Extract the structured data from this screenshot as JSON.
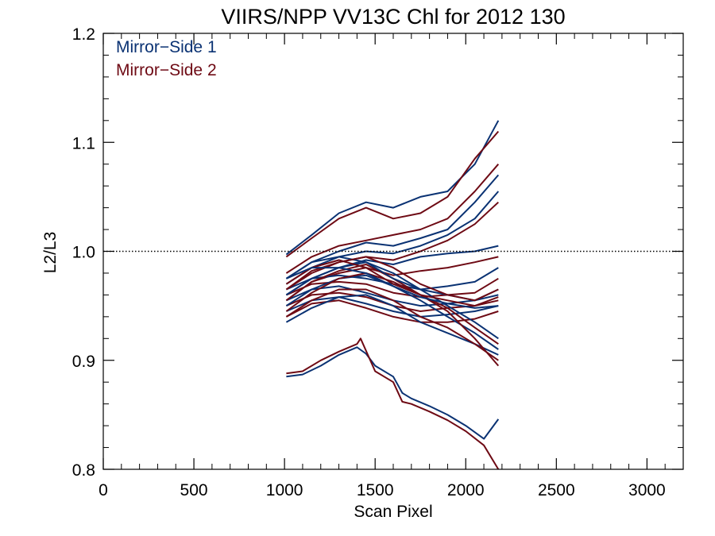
{
  "chart_data": {
    "type": "line",
    "title": "VIIRS/NPP VV13C Chl for 2012 130",
    "xlabel": "Scan Pixel",
    "ylabel": "L2/L3",
    "xlim": [
      0,
      3200
    ],
    "ylim": [
      0.8,
      1.2
    ],
    "x_ticks": [
      0,
      500,
      1000,
      1500,
      2000,
      2500,
      3000
    ],
    "x_tick_labels": [
      "0",
      "500",
      "1000",
      "1500",
      "2000",
      "2500",
      "3000"
    ],
    "y_ticks": [
      0.8,
      0.9,
      1.0,
      1.1,
      1.2
    ],
    "y_tick_labels": [
      "0.8",
      "0.9",
      "1.0",
      "1.1",
      "1.2"
    ],
    "reference_line": {
      "y": 1.0,
      "style": "dotted"
    },
    "grid": false,
    "legend_position": "top-left",
    "legend": [
      {
        "label": "Mirror−Side 1",
        "color": "#0a3273"
      },
      {
        "label": "Mirror−Side 2",
        "color": "#6e0a14"
      }
    ],
    "series_colors": [
      "#0a3273",
      "#6e0a14"
    ],
    "series": [
      {
        "group": 0,
        "x": [
          1010,
          1150,
          1300,
          1450,
          1600,
          1750,
          1900,
          2050,
          2180
        ],
        "y": [
          0.997,
          1.015,
          1.035,
          1.045,
          1.04,
          1.05,
          1.055,
          1.08,
          1.12
        ]
      },
      {
        "group": 1,
        "x": [
          1010,
          1150,
          1300,
          1450,
          1600,
          1750,
          1900,
          2050,
          2180
        ],
        "y": [
          0.995,
          1.012,
          1.03,
          1.04,
          1.03,
          1.035,
          1.05,
          1.085,
          1.11
        ]
      },
      {
        "group": 1,
        "x": [
          1010,
          1150,
          1300,
          1450,
          1600,
          1750,
          1900,
          2050,
          2180
        ],
        "y": [
          0.98,
          0.995,
          1.005,
          1.01,
          1.015,
          1.02,
          1.03,
          1.055,
          1.08
        ]
      },
      {
        "group": 0,
        "x": [
          1010,
          1150,
          1300,
          1450,
          1600,
          1750,
          1900,
          2050,
          2180
        ],
        "y": [
          0.975,
          0.99,
          1.0,
          1.008,
          1.005,
          1.012,
          1.02,
          1.045,
          1.07
        ]
      },
      {
        "group": 0,
        "x": [
          1010,
          1150,
          1300,
          1450,
          1600,
          1750,
          1900,
          2050,
          2180
        ],
        "y": [
          0.97,
          0.985,
          0.995,
          1.0,
          0.998,
          1.005,
          1.015,
          1.03,
          1.055
        ]
      },
      {
        "group": 1,
        "x": [
          1010,
          1150,
          1300,
          1450,
          1600,
          1750,
          1900,
          2050,
          2180
        ],
        "y": [
          0.965,
          0.982,
          0.99,
          0.995,
          0.992,
          1.0,
          1.01,
          1.025,
          1.045
        ]
      },
      {
        "group": 0,
        "x": [
          1010,
          1150,
          1300,
          1450,
          1600,
          1750,
          1900,
          2050,
          2180
        ],
        "y": [
          0.96,
          0.975,
          0.985,
          0.992,
          0.988,
          0.995,
          0.998,
          1.0,
          1.005
        ]
      },
      {
        "group": 1,
        "x": [
          1010,
          1150,
          1300,
          1450,
          1600,
          1750,
          1900,
          2050,
          2180
        ],
        "y": [
          0.955,
          0.972,
          0.98,
          0.985,
          0.978,
          0.982,
          0.985,
          0.99,
          0.995
        ]
      },
      {
        "group": 0,
        "x": [
          1010,
          1150,
          1300,
          1450,
          1600,
          1750,
          1900,
          2050,
          2180
        ],
        "y": [
          0.965,
          0.975,
          0.978,
          0.975,
          0.97,
          0.965,
          0.968,
          0.972,
          0.985
        ]
      },
      {
        "group": 1,
        "x": [
          1010,
          1150,
          1300,
          1450,
          1600,
          1750,
          1900,
          2050,
          2180
        ],
        "y": [
          0.96,
          0.97,
          0.972,
          0.97,
          0.962,
          0.958,
          0.96,
          0.962,
          0.975
        ]
      },
      {
        "group": 0,
        "x": [
          1010,
          1150,
          1300,
          1450,
          1600,
          1750,
          1900,
          2050,
          2180
        ],
        "y": [
          0.955,
          0.965,
          0.968,
          0.962,
          0.955,
          0.95,
          0.952,
          0.955,
          0.965
        ]
      },
      {
        "group": 1,
        "x": [
          1010,
          1150,
          1300,
          1450,
          1600,
          1750,
          1900,
          2050,
          2180
        ],
        "y": [
          0.95,
          0.96,
          0.962,
          0.958,
          0.95,
          0.945,
          0.948,
          0.95,
          0.958
        ]
      },
      {
        "group": 0,
        "x": [
          1010,
          1150,
          1300,
          1450,
          1600,
          1750,
          1900,
          2050,
          2180
        ],
        "y": [
          0.945,
          0.955,
          0.958,
          0.952,
          0.945,
          0.94,
          0.942,
          0.945,
          0.95
        ]
      },
      {
        "group": 1,
        "x": [
          1010,
          1150,
          1300,
          1450,
          1600,
          1750,
          1900,
          2050,
          2180
        ],
        "y": [
          0.94,
          0.952,
          0.955,
          0.948,
          0.94,
          0.935,
          0.935,
          0.938,
          0.945
        ]
      },
      {
        "group": 0,
        "x": [
          1010,
          1150,
          1300,
          1450,
          1600,
          1750,
          1900,
          2050,
          2180
        ],
        "y": [
          0.935,
          0.948,
          0.958,
          0.96,
          0.95,
          0.935,
          0.925,
          0.915,
          0.905
        ]
      },
      {
        "group": 1,
        "x": [
          1010,
          1150,
          1300,
          1450,
          1600,
          1750,
          1900,
          2050,
          2180
        ],
        "y": [
          0.94,
          0.955,
          0.965,
          0.965,
          0.955,
          0.94,
          0.93,
          0.915,
          0.9
        ]
      },
      {
        "group": 0,
        "x": [
          1010,
          1150,
          1300,
          1450,
          1600,
          1750,
          1900,
          2050,
          2180
        ],
        "y": [
          0.95,
          0.965,
          0.975,
          0.978,
          0.968,
          0.955,
          0.94,
          0.925,
          0.91
        ]
      },
      {
        "group": 1,
        "x": [
          1010,
          1150,
          1300,
          1450,
          1600,
          1750,
          1900,
          2050,
          2180
        ],
        "y": [
          0.945,
          0.962,
          0.975,
          0.98,
          0.972,
          0.96,
          0.945,
          0.92,
          0.895
        ]
      },
      {
        "group": 0,
        "x": [
          1010,
          1150,
          1300,
          1450,
          1600,
          1750,
          1900,
          2050,
          2180
        ],
        "y": [
          0.96,
          0.975,
          0.985,
          0.99,
          0.98,
          0.965,
          0.95,
          0.935,
          0.92
        ]
      },
      {
        "group": 1,
        "x": [
          1010,
          1150,
          1300,
          1450,
          1600,
          1750,
          1900,
          2050,
          2180
        ],
        "y": [
          0.955,
          0.972,
          0.982,
          0.988,
          0.975,
          0.96,
          0.948,
          0.93,
          0.915
        ]
      },
      {
        "group": 0,
        "x": [
          1010,
          1150,
          1300,
          1450,
          1600,
          1750,
          1900,
          2050,
          2180
        ],
        "y": [
          0.975,
          0.99,
          0.995,
          0.99,
          0.975,
          0.965,
          0.96,
          0.955,
          0.96
        ]
      },
      {
        "group": 1,
        "x": [
          1010,
          1150,
          1300,
          1450,
          1600,
          1750,
          1900,
          2050,
          2180
        ],
        "y": [
          0.97,
          0.985,
          0.992,
          0.985,
          0.97,
          0.96,
          0.955,
          0.95,
          0.955
        ]
      },
      {
        "group": 1,
        "x": [
          1010,
          1150,
          1300,
          1450,
          1600,
          1750,
          1900,
          2050,
          2180
        ],
        "y": [
          0.965,
          0.98,
          0.99,
          0.995,
          0.985,
          0.97,
          0.96,
          0.955,
          0.965
        ]
      },
      {
        "group": 0,
        "x": [
          1010,
          1150,
          1300,
          1450,
          1600,
          1750,
          1900,
          2050,
          2180
        ],
        "y": [
          0.975,
          0.985,
          0.985,
          0.98,
          0.968,
          0.958,
          0.952,
          0.948,
          0.95
        ]
      },
      {
        "group": 0,
        "x": [
          1010,
          1100,
          1200,
          1300,
          1400,
          1450,
          1500,
          1600,
          1650,
          1700,
          1800,
          1900,
          2000,
          2100,
          2180
        ],
        "y": [
          0.885,
          0.887,
          0.895,
          0.905,
          0.912,
          0.906,
          0.895,
          0.885,
          0.87,
          0.865,
          0.858,
          0.85,
          0.84,
          0.828,
          0.846
        ]
      },
      {
        "group": 1,
        "x": [
          1010,
          1100,
          1200,
          1300,
          1400,
          1420,
          1500,
          1600,
          1650,
          1700,
          1800,
          1900,
          2000,
          2100,
          2180
        ],
        "y": [
          0.888,
          0.89,
          0.9,
          0.908,
          0.915,
          0.92,
          0.89,
          0.88,
          0.862,
          0.86,
          0.853,
          0.845,
          0.835,
          0.822,
          0.8
        ]
      }
    ]
  }
}
